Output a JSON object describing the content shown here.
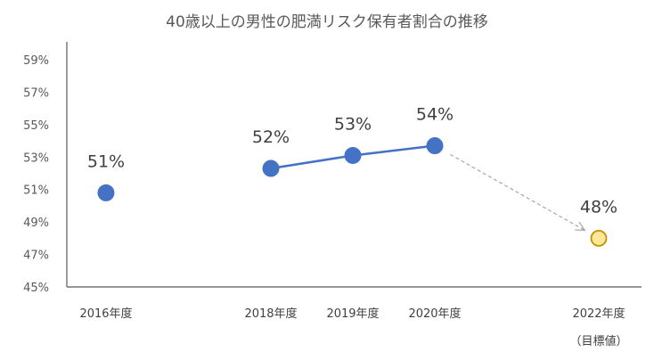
{
  "chart_data": {
    "type": "line",
    "title": "40歳以上の男性の肥満リスク保有者割合の推移",
    "xlabel": "",
    "ylabel": "",
    "ylim": [
      45,
      59
    ],
    "yticks": [
      "45%",
      "47%",
      "49%",
      "51%",
      "53%",
      "55%",
      "57%",
      "59%"
    ],
    "ytick_values": [
      45,
      47,
      49,
      51,
      53,
      55,
      57,
      59
    ],
    "grid": false,
    "legend": "none",
    "categories": [
      "2016年度",
      "2018年度",
      "2019年度",
      "2020年度",
      "2022年度"
    ],
    "category_sublabels": [
      "",
      "",
      "",
      "",
      "（目標値）"
    ],
    "x": [
      2016,
      2018,
      2019,
      2020,
      2022
    ],
    "points": [
      {
        "category": "2016年度",
        "x": 2016,
        "value": 50.8,
        "label": "51%",
        "kind": "actual"
      },
      {
        "category": "2018年度",
        "x": 2018,
        "value": 52.3,
        "label": "52%",
        "kind": "actual"
      },
      {
        "category": "2019年度",
        "x": 2019,
        "value": 53.1,
        "label": "53%",
        "kind": "actual"
      },
      {
        "category": "2020年度",
        "x": 2020,
        "value": 53.7,
        "label": "54%",
        "kind": "actual"
      },
      {
        "category": "2022年度",
        "x": 2022,
        "value": 48.0,
        "label": "48%",
        "kind": "target"
      }
    ],
    "line_segment": [
      "2018年度",
      "2019年度",
      "2020年度"
    ],
    "dashed_arrow": {
      "from": "2020年度",
      "to": "2022年度"
    },
    "colors": {
      "actual_fill": "#4472C4",
      "line": "#4472C4",
      "target_fill": "#FFE699",
      "target_stroke": "#BF9000",
      "arrow": "#A6A6A6",
      "axis": "#595959"
    }
  }
}
